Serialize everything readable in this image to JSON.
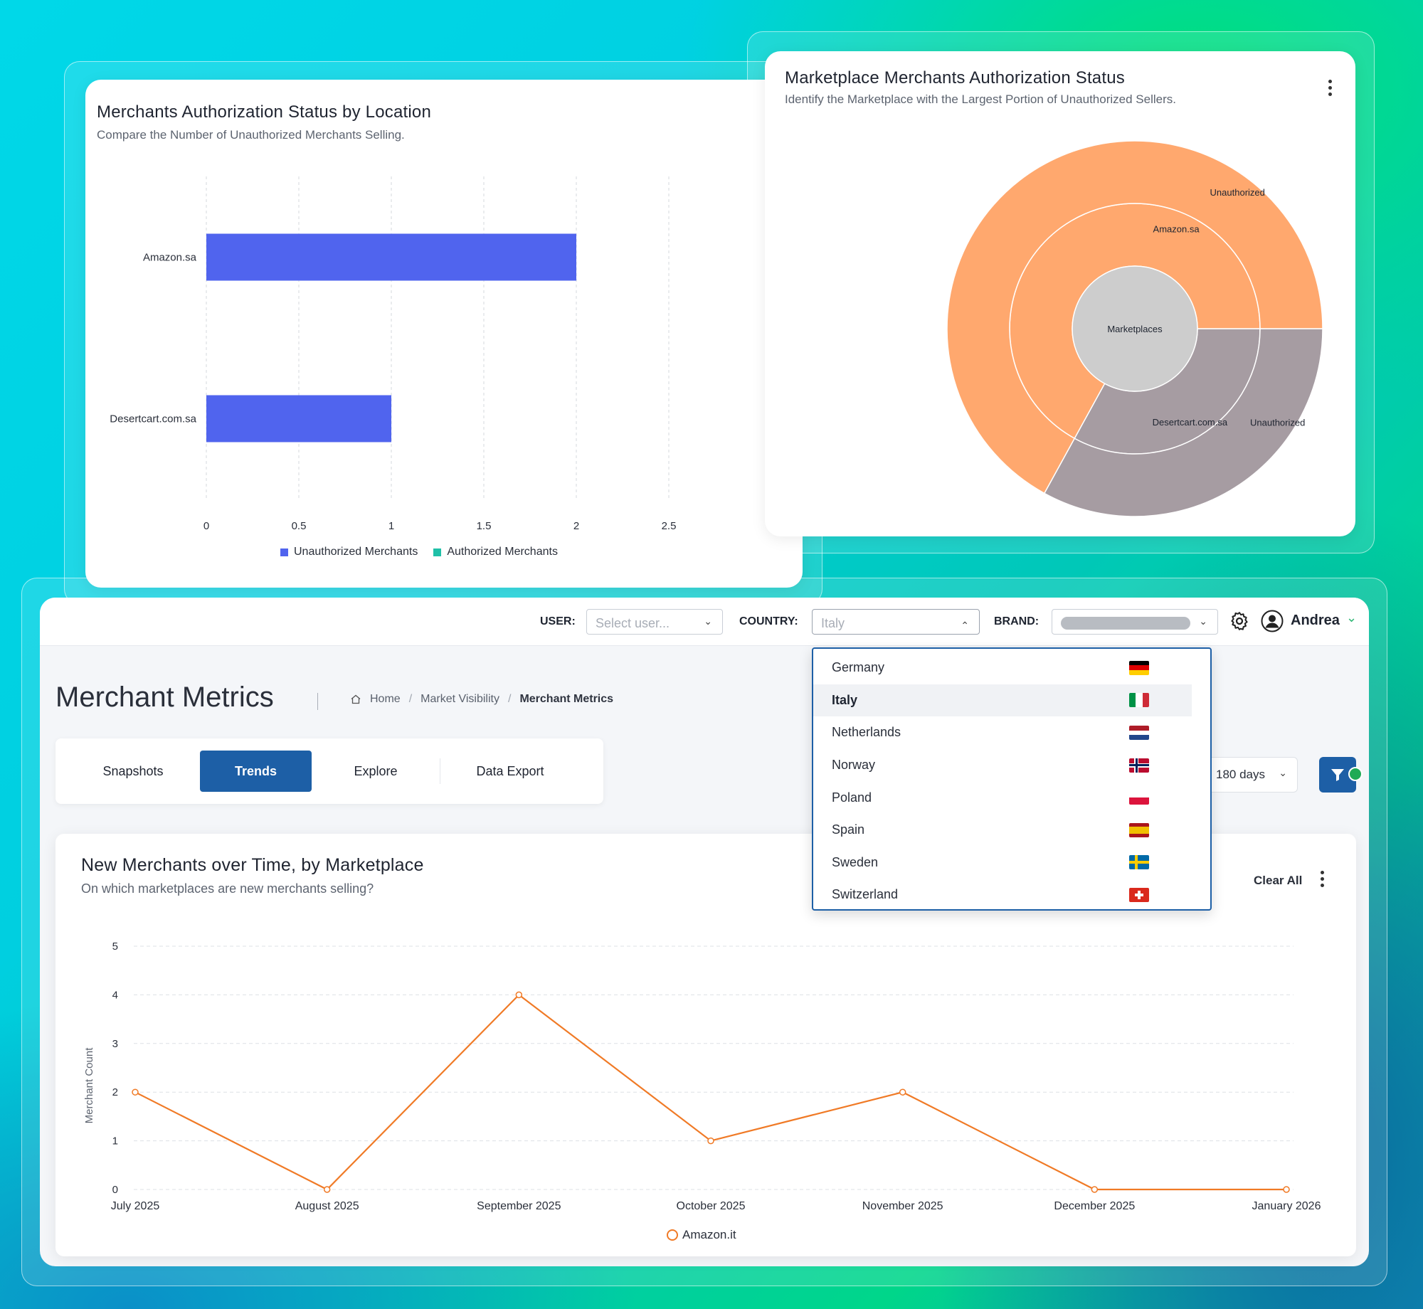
{
  "card1": {
    "title": "Merchants Authorization Status by Location",
    "subtitle": "Compare the Number of Unauthorized Merchants Selling.",
    "chart_data": {
      "type": "bar",
      "orientation": "horizontal",
      "categories": [
        "Amazon.sa",
        "Desertcart.com.sa"
      ],
      "series": [
        {
          "name": "Unauthorized Merchants",
          "values": [
            2,
            1
          ],
          "color": "#5064ee"
        },
        {
          "name": "Authorized Merchants",
          "values": [
            0,
            0
          ],
          "color": "#20c0a8"
        }
      ],
      "xlim": [
        0,
        2.5
      ],
      "xticks": [
        "0",
        "0.5",
        "1",
        "1.5",
        "2",
        "2.5"
      ],
      "grid": true,
      "legend": "bottom"
    }
  },
  "card2": {
    "title": "Marketplace Merchants Authorization Status",
    "subtitle": "Identify the Marketplace with the Largest Portion of Unauthorized Sellers.",
    "chart_data": {
      "type": "sunburst",
      "root": "Marketplaces",
      "rings": [
        {
          "label": "Amazon.sa",
          "share": 0.67,
          "color": "#ffa86e",
          "children": [
            {
              "label": "Unauthorized",
              "share": 0.67
            }
          ]
        },
        {
          "label": "Desertcart.com.sa",
          "share": 0.33,
          "color": "#a69ca2",
          "children": [
            {
              "label": "Unauthorized",
              "share": 0.33
            }
          ]
        }
      ],
      "root_color": "#cdcdcd"
    }
  },
  "topbar": {
    "user_label": "USER:",
    "user_placeholder": "Select user...",
    "country_label": "COUNTRY:",
    "country_value": "Italy",
    "brand_label": "BRAND:",
    "username": "Andrea"
  },
  "page": {
    "title": "Merchant Metrics",
    "breadcrumbs": [
      "Home",
      "Market Visibility",
      "Merchant Metrics"
    ],
    "tabs": [
      "Snapshots",
      "Trends",
      "Explore",
      "Data Export"
    ],
    "active_tab": "Trends",
    "range": "180 days"
  },
  "country_dropdown": {
    "options": [
      {
        "name": "Germany",
        "flag": [
          "#000000",
          "#dd0000",
          "#ffce00"
        ],
        "dir": "h"
      },
      {
        "name": "Italy",
        "flag": [
          "#009246",
          "#ffffff",
          "#ce2b37"
        ],
        "dir": "v",
        "selected": true
      },
      {
        "name": "Netherlands",
        "flag": [
          "#ae1c28",
          "#ffffff",
          "#21468b"
        ],
        "dir": "h"
      },
      {
        "name": "Norway",
        "flag": [
          "#ba0c2f",
          "#ffffff",
          "#00205b"
        ],
        "dir": "cross"
      },
      {
        "name": "Poland",
        "flag": [
          "#ffffff",
          "#dc143c"
        ],
        "dir": "h"
      },
      {
        "name": "Spain",
        "flag": [
          "#aa151b",
          "#f1bf00",
          "#aa151b"
        ],
        "dir": "h3"
      },
      {
        "name": "Sweden",
        "flag": [
          "#006aa7",
          "#fecc00"
        ],
        "dir": "cross2"
      },
      {
        "name": "Switzerland",
        "flag": [
          "#da291c",
          "#ffffff"
        ],
        "dir": "swiss"
      }
    ]
  },
  "card3": {
    "title": "New Merchants over Time, by Marketplace",
    "subtitle": "On which marketplaces are new merchants selling?",
    "clear_all": "Clear All",
    "chart_data": {
      "type": "line",
      "x": [
        "July 2025",
        "August 2025",
        "September 2025",
        "October 2025",
        "November 2025",
        "December 2025",
        "January 2026"
      ],
      "series": [
        {
          "name": "Amazon.it",
          "values": [
            2,
            0,
            4,
            1,
            2,
            0,
            0
          ],
          "color": "#f07a26"
        }
      ],
      "ylabel": "Merchant Count",
      "ylim": [
        0,
        5
      ],
      "yticks": [
        "0",
        "1",
        "2",
        "3",
        "4",
        "5"
      ],
      "grid": true,
      "legend": "bottom"
    }
  }
}
